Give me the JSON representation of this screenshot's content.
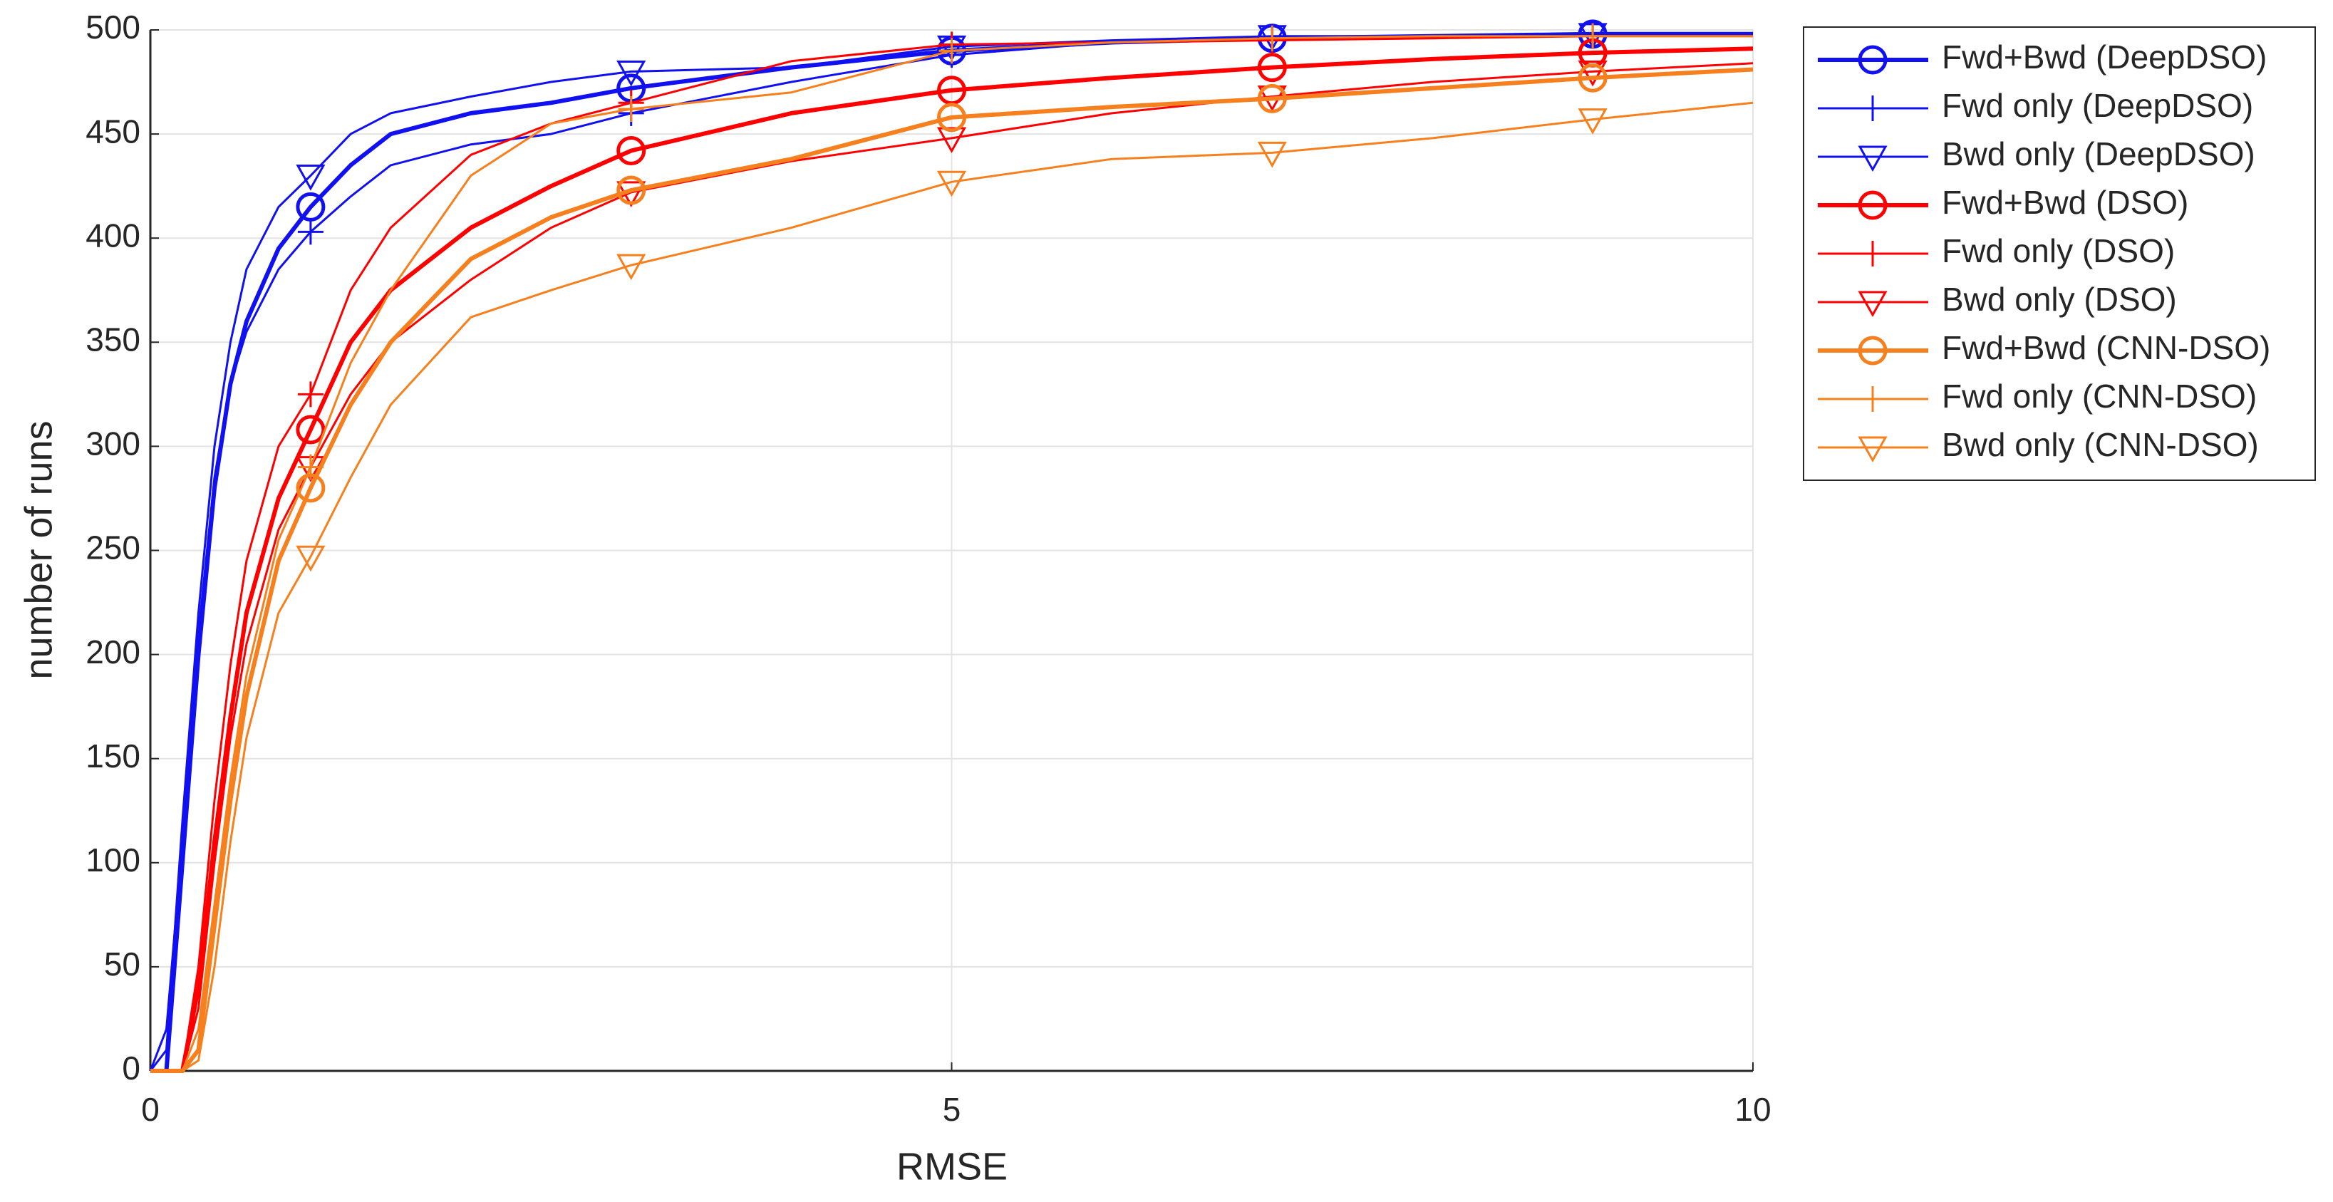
{
  "chart_data": {
    "type": "line",
    "xlabel": "RMSE",
    "ylabel": "number of runs",
    "xlim": [
      0,
      10
    ],
    "xticks": [
      0,
      5,
      10
    ],
    "ylim": [
      0,
      500
    ],
    "yticks": [
      0,
      50,
      100,
      150,
      200,
      250,
      300,
      350,
      400,
      450,
      500
    ],
    "grid": true,
    "legend": "outside-right-top",
    "marker_x": [
      1,
      3,
      5,
      7,
      9
    ],
    "x": [
      0,
      0.1,
      0.2,
      0.3,
      0.4,
      0.5,
      0.6,
      0.8,
      1,
      1.25,
      1.5,
      2,
      2.5,
      3,
      4,
      5,
      6,
      7,
      8,
      9,
      10
    ],
    "series": [
      {
        "name": "Fwd+Bwd (DeepDSO)",
        "color": "#1010f0",
        "width": 6,
        "marker": "circle",
        "values": [
          0,
          0,
          100,
          200,
          280,
          330,
          360,
          395,
          415,
          435,
          450,
          460,
          465,
          472,
          482,
          490,
          494,
          496,
          497,
          498,
          498
        ]
      },
      {
        "name": "Fwd only (DeepDSO)",
        "color": "#1010f0",
        "width": 3,
        "marker": "plus",
        "values": [
          0,
          20,
          110,
          210,
          285,
          330,
          355,
          385,
          403,
          420,
          435,
          445,
          450,
          460,
          475,
          488,
          494,
          496,
          497,
          498,
          498
        ]
      },
      {
        "name": "Bwd only (DeepDSO)",
        "color": "#1010f0",
        "width": 3,
        "marker": "triangle",
        "values": [
          0,
          10,
          120,
          220,
          300,
          350,
          385,
          415,
          430,
          450,
          460,
          468,
          475,
          480,
          482,
          492,
          495,
          497,
          497,
          498,
          498
        ]
      },
      {
        "name": "Fwd+Bwd (DSO)",
        "color": "#ff0000",
        "width": 6,
        "marker": "circle",
        "values": [
          0,
          0,
          0,
          40,
          110,
          170,
          220,
          275,
          308,
          350,
          375,
          405,
          425,
          442,
          460,
          471,
          477,
          482,
          486,
          489,
          491
        ]
      },
      {
        "name": "Fwd only (DSO)",
        "color": "#ff0000",
        "width": 3,
        "marker": "plus",
        "values": [
          0,
          0,
          0,
          50,
          130,
          195,
          245,
          300,
          325,
          375,
          405,
          440,
          455,
          465,
          485,
          493,
          494,
          495,
          496,
          497,
          497
        ]
      },
      {
        "name": "Bwd only (DSO)",
        "color": "#ff0000",
        "width": 3,
        "marker": "triangle",
        "values": [
          0,
          0,
          0,
          30,
          100,
          160,
          205,
          260,
          290,
          325,
          350,
          380,
          405,
          422,
          437,
          448,
          460,
          468,
          475,
          480,
          484
        ]
      },
      {
        "name": "Fwd+Bwd (CNN-DSO)",
        "color": "#f7801e",
        "width": 6,
        "marker": "circle",
        "values": [
          0,
          0,
          0,
          10,
          70,
          130,
          180,
          245,
          280,
          320,
          350,
          390,
          410,
          423,
          438,
          458,
          463,
          467,
          472,
          477,
          481
        ]
      },
      {
        "name": "Fwd only (CNN-DSO)",
        "color": "#f7801e",
        "width": 3,
        "marker": "plus",
        "values": [
          0,
          0,
          0,
          20,
          80,
          140,
          190,
          255,
          290,
          340,
          375,
          430,
          455,
          462,
          470,
          490,
          494,
          496,
          497,
          497,
          497
        ]
      },
      {
        "name": "Bwd only (CNN-DSO)",
        "color": "#f7801e",
        "width": 3,
        "marker": "triangle",
        "values": [
          0,
          0,
          0,
          5,
          50,
          110,
          160,
          220,
          247,
          285,
          320,
          362,
          375,
          387,
          405,
          427,
          438,
          441,
          448,
          457,
          465
        ]
      }
    ]
  }
}
